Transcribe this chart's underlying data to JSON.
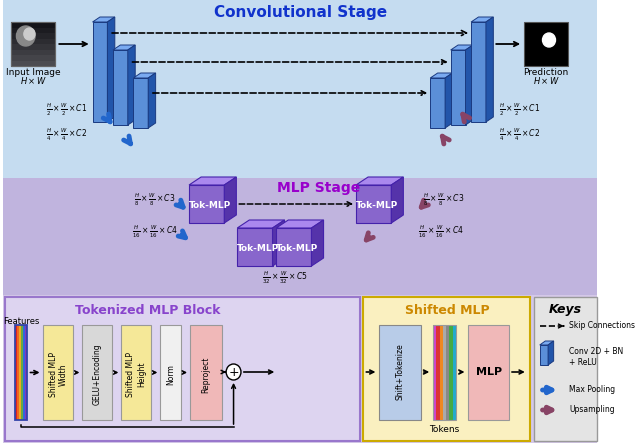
{
  "title_conv": "Convolutional Stage",
  "title_mlp": "MLP Stage",
  "title_tok_block": "Tokenized MLP Block",
  "title_shifted_mlp": "Shifted MLP",
  "title_keys": "Keys",
  "conv_bg": "#c5dcf0",
  "mlp_bg": "#c0b4de",
  "bottom_left_bg": "#d4c8e8",
  "tok_block_bg": "#ddd4f0",
  "shifted_mlp_bg": "#faf0c0",
  "keys_bg": "#e4e4e4",
  "blue_block_color": "#4a7fd4",
  "blue_block_dark": "#1a4a9a",
  "blue_block_top": "#6699ee",
  "purple_cube_face": "#8866cc",
  "purple_cube_top": "#aa88ee",
  "purple_cube_dark": "#5533aa",
  "magenta_arrow": "#884466",
  "blue_arrow": "#2266cc",
  "yellow_block": "#f5e898",
  "gray_block": "#d8d8d8",
  "white_block": "#f0f0f0",
  "pink_block": "#f0b8b8",
  "light_blue_block": "#b8cce8"
}
